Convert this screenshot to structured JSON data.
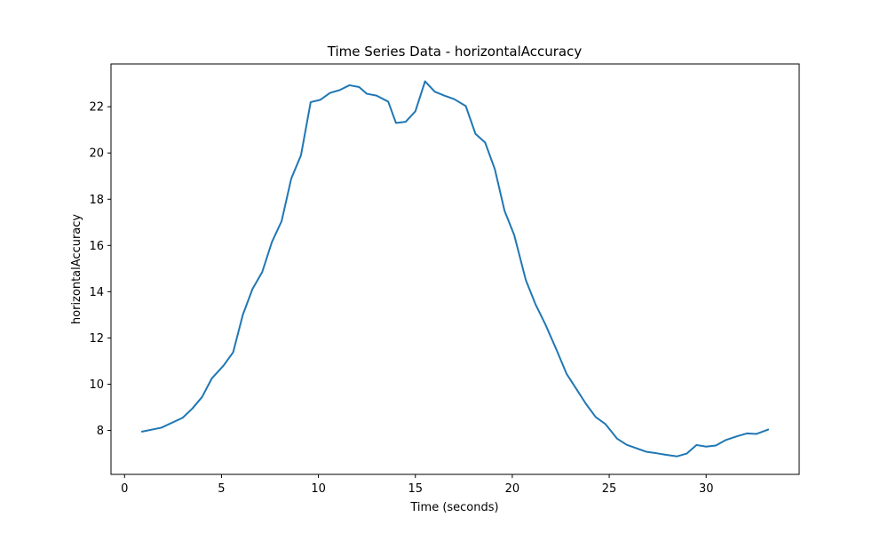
{
  "chart_data": {
    "type": "line",
    "title": "Time Series Data - horizontalAccuracy",
    "xlabel": "Time (seconds)",
    "ylabel": "horizontalAccuracy",
    "xlim": [
      -0.7,
      34.8
    ],
    "ylim": [
      6.1,
      23.85
    ],
    "xticks": [
      0,
      5,
      10,
      15,
      20,
      25,
      30
    ],
    "yticks": [
      8,
      10,
      12,
      14,
      16,
      18,
      20,
      22
    ],
    "grid": false,
    "series": [
      {
        "color": "#1f77b4",
        "x": [
          0.9,
          1.9,
          3.0,
          3.5,
          4.0,
          4.5,
          5.1,
          5.6,
          6.1,
          6.6,
          7.1,
          7.6,
          8.1,
          8.6,
          9.1,
          9.6,
          10.1,
          10.6,
          11.1,
          11.6,
          12.1,
          12.5,
          13.0,
          13.6,
          14.0,
          14.5,
          15.0,
          15.5,
          16.0,
          16.5,
          17.0,
          17.6,
          18.1,
          18.6,
          19.1,
          19.6,
          20.1,
          20.7,
          21.2,
          21.7,
          22.3,
          22.8,
          23.3,
          23.8,
          24.3,
          24.8,
          25.4,
          25.9,
          26.9,
          27.4,
          27.9,
          28.5,
          29.0,
          29.5,
          30.0,
          30.5,
          31.0,
          31.6,
          32.1,
          32.6,
          33.2
        ],
        "y": [
          7.95,
          8.12,
          8.55,
          8.95,
          9.45,
          10.25,
          10.8,
          11.38,
          13.0,
          14.12,
          14.85,
          16.15,
          17.05,
          18.9,
          19.9,
          22.2,
          22.3,
          22.6,
          22.72,
          22.93,
          22.85,
          22.56,
          22.48,
          22.22,
          21.3,
          21.35,
          21.8,
          23.1,
          22.65,
          22.48,
          22.33,
          22.03,
          20.83,
          20.45,
          19.3,
          17.5,
          16.45,
          14.5,
          13.45,
          12.6,
          11.45,
          10.45,
          9.8,
          9.15,
          8.58,
          8.28,
          7.65,
          7.38,
          7.08,
          7.02,
          6.95,
          6.88,
          7.0,
          7.37,
          7.3,
          7.35,
          7.58,
          7.75,
          7.87,
          7.85,
          8.04
        ]
      }
    ]
  }
}
